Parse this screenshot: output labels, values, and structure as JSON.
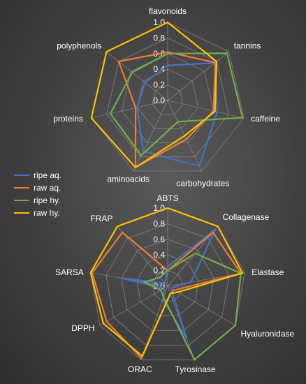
{
  "chart_data": [
    {
      "type": "radar",
      "title": "",
      "axes": [
        "flavonoids",
        "tannins",
        "caffeine",
        "carbohydrates",
        "aminoacids",
        "proteins",
        "polyphenols"
      ],
      "ticks": [
        "0.0",
        "0.2",
        "0.4",
        "0.6",
        "0.8",
        "1.0"
      ],
      "range": [
        0,
        1
      ],
      "series": [
        {
          "name": "ripe aq.",
          "color": "#4472c4",
          "values": [
            0.45,
            0.77,
            0.65,
            0.93,
            0.72,
            0.4,
            0.37
          ]
        },
        {
          "name": "raw aq.",
          "color": "#ed7d31",
          "values": [
            0.62,
            0.78,
            0.6,
            0.55,
            0.95,
            0.42,
            0.8
          ]
        },
        {
          "name": "ripe hy.",
          "color": "#70ad47",
          "values": [
            0.6,
            0.97,
            0.98,
            0.3,
            0.78,
            0.75,
            0.58
          ]
        },
        {
          "name": "raw hy.",
          "color": "#ffc000",
          "values": [
            1.0,
            0.8,
            0.62,
            0.5,
            0.95,
            1.0,
            1.0
          ]
        }
      ]
    },
    {
      "type": "radar",
      "title": "",
      "axes": [
        "ABTS",
        "Collagenase",
        "Elastase",
        "Hyaluronidase",
        "Tyrosinase",
        "ORAC",
        "DPPH",
        "SARSA",
        "FRAP"
      ],
      "ticks": [
        "0.0",
        "0.2",
        "0.4",
        "0.6",
        "0.8",
        "1.0"
      ],
      "range": [
        0,
        1
      ],
      "series": [
        {
          "name": "ripe aq.",
          "color": "#4472c4",
          "values": [
            0.25,
            0.95,
            0.3,
            0.05,
            0.72,
            0.18,
            0.05,
            0.6,
            0.05
          ]
        },
        {
          "name": "raw aq.",
          "color": "#ed7d31",
          "values": [
            0.2,
            0.9,
            0.95,
            0.1,
            0.1,
            0.98,
            0.9,
            0.98,
            0.9
          ]
        },
        {
          "name": "ripe hy.",
          "color": "#70ad47",
          "values": [
            0.2,
            0.55,
            0.95,
            1.0,
            1.0,
            0.15,
            0.1,
            0.3,
            0.15
          ]
        },
        {
          "name": "raw hy.",
          "color": "#ffc000",
          "values": [
            1.0,
            1.0,
            0.97,
            0.15,
            0.1,
            0.95,
            0.95,
            1.0,
            1.0
          ]
        }
      ]
    }
  ],
  "legend": [
    {
      "label": "ripe aq.",
      "color": "#4472c4"
    },
    {
      "label": "raw aq.",
      "color": "#ed7d31"
    },
    {
      "label": "ripe hy.",
      "color": "#70ad47"
    },
    {
      "label": "raw hy.",
      "color": "#ffc000"
    }
  ]
}
